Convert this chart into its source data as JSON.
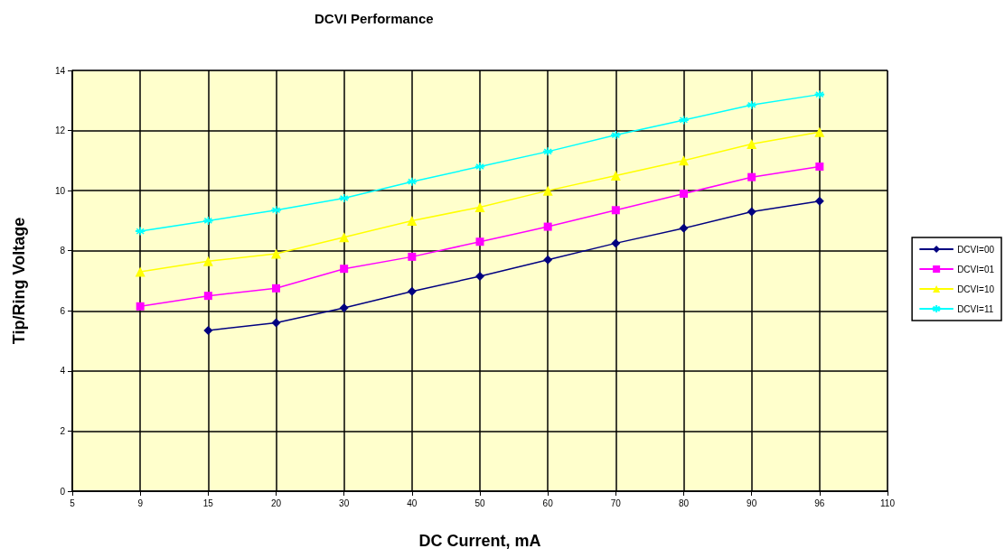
{
  "chart_data": {
    "type": "line",
    "title": "DCVI Performance",
    "xlabel": "DC Current, mA",
    "ylabel": "Tip/Ring Voltage",
    "categories": [
      "5",
      "9",
      "15",
      "20",
      "30",
      "40",
      "50",
      "60",
      "70",
      "80",
      "90",
      "96",
      "110"
    ],
    "series": [
      {
        "name": "DCVI=00",
        "color": "#000080",
        "marker": "diamond",
        "values": [
          null,
          null,
          5.35,
          5.6,
          6.1,
          6.65,
          7.15,
          7.7,
          8.25,
          8.75,
          9.3,
          9.65,
          null
        ]
      },
      {
        "name": "DCVI=01",
        "color": "#ff00ff",
        "marker": "square",
        "values": [
          null,
          6.15,
          6.5,
          6.75,
          7.4,
          7.8,
          8.3,
          8.8,
          9.35,
          9.9,
          10.45,
          10.8,
          null
        ]
      },
      {
        "name": "DCVI=10",
        "color": "#ffff00",
        "marker": "triangle",
        "values": [
          null,
          7.3,
          7.65,
          7.9,
          8.45,
          9.0,
          9.45,
          10.0,
          10.5,
          11.0,
          11.55,
          11.95,
          null
        ]
      },
      {
        "name": "DCVI=11",
        "color": "#00ffff",
        "marker": "cross",
        "values": [
          null,
          8.65,
          9.0,
          9.35,
          9.75,
          10.3,
          10.8,
          11.3,
          11.85,
          12.35,
          12.85,
          13.2,
          null
        ]
      }
    ],
    "ylim": [
      0,
      14
    ],
    "yticks": [
      0,
      2,
      4,
      6,
      8,
      10,
      12,
      14
    ],
    "grid": true,
    "legend": "right"
  }
}
